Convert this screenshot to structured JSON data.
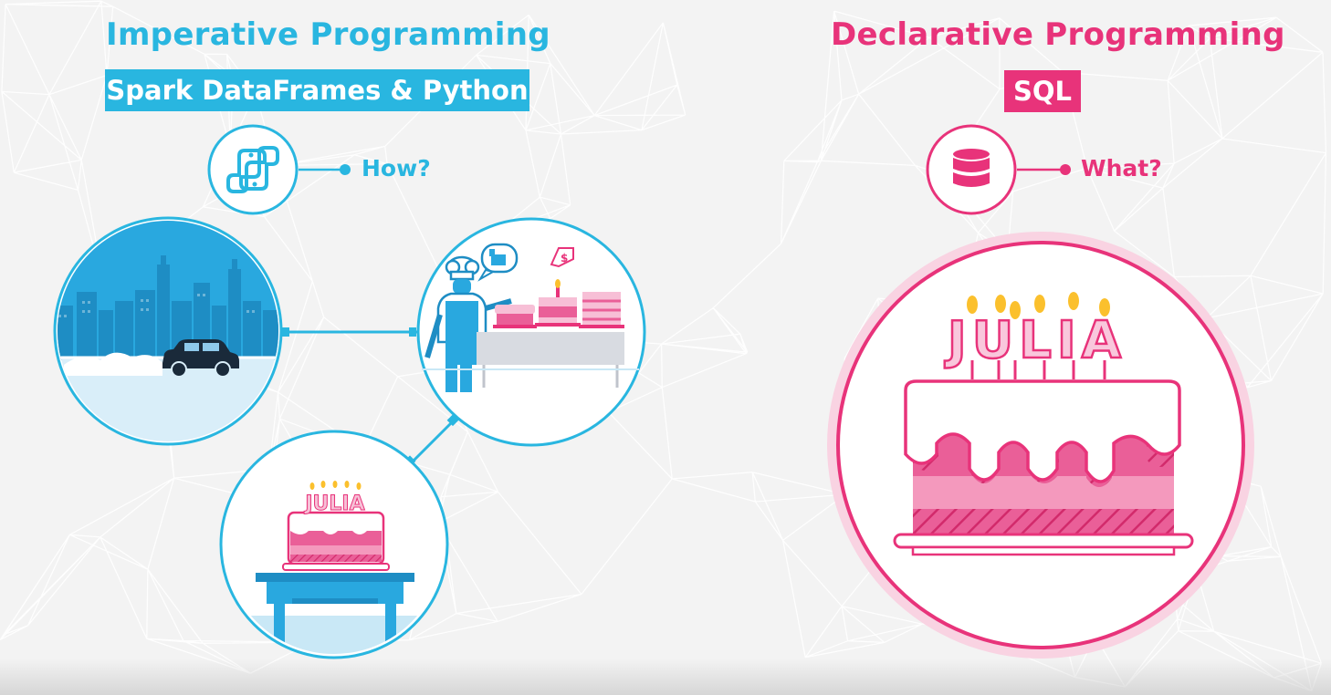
{
  "colors": {
    "imperative": "#29b6e0",
    "declarative": "#e8337a",
    "background": "#f3f3f3"
  },
  "imperative": {
    "title": "Imperative Programming",
    "badge": "Spark DataFrames & Python",
    "question": "How?",
    "icon": "python-icon",
    "steps": [
      "city-car-scene",
      "bakery-shop-scene",
      "birthday-cake-table-scene"
    ],
    "cake_text": "JULIA"
  },
  "declarative": {
    "title": "Declarative Programming",
    "badge": "SQL",
    "question": "What?",
    "icon": "database-icon",
    "cake_text": "JULIA"
  }
}
